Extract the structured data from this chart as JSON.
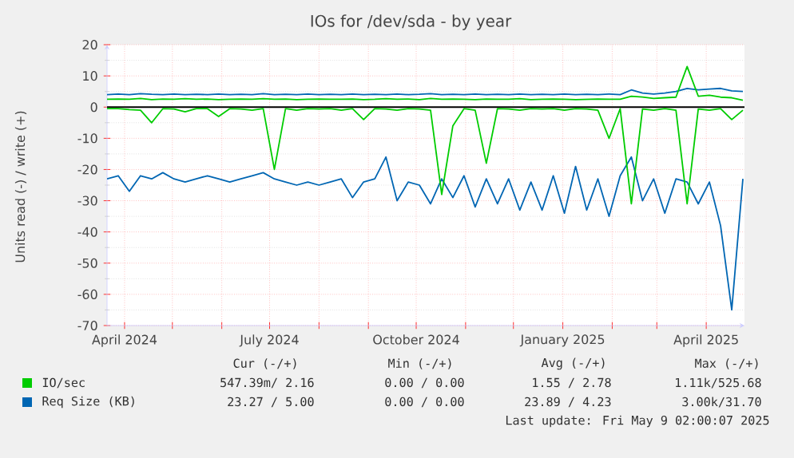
{
  "chart_data": {
    "type": "line",
    "title": "IOs for /dev/sda - by year",
    "ylabel": "Units read (-) / write (+)",
    "x": [
      "2024-03-21",
      "2024-03-28",
      "2024-04-04",
      "2024-04-11",
      "2024-04-18",
      "2024-04-25",
      "2024-05-02",
      "2024-05-09",
      "2024-05-16",
      "2024-05-23",
      "2024-05-30",
      "2024-06-06",
      "2024-06-13",
      "2024-06-20",
      "2024-06-27",
      "2024-07-04",
      "2024-07-11",
      "2024-07-18",
      "2024-07-25",
      "2024-08-01",
      "2024-08-08",
      "2024-08-15",
      "2024-08-22",
      "2024-08-29",
      "2024-09-05",
      "2024-09-12",
      "2024-09-19",
      "2024-09-26",
      "2024-10-03",
      "2024-10-10",
      "2024-10-17",
      "2024-10-24",
      "2024-10-31",
      "2024-11-07",
      "2024-11-14",
      "2024-11-21",
      "2024-11-28",
      "2024-12-05",
      "2024-12-12",
      "2024-12-19",
      "2024-12-26",
      "2025-01-02",
      "2025-01-09",
      "2025-01-16",
      "2025-01-23",
      "2025-01-30",
      "2025-02-06",
      "2025-02-13",
      "2025-02-20",
      "2025-02-27",
      "2025-03-06",
      "2025-03-13",
      "2025-03-20",
      "2025-03-27",
      "2025-04-03",
      "2025-04-10",
      "2025-04-17",
      "2025-04-24"
    ],
    "series": [
      {
        "color": "#00cc00",
        "values": [
          -0.5,
          -0.5,
          -0.8,
          -1,
          -5,
          -0.5,
          -0.6,
          -1.5,
          -0.5,
          -0.5,
          -3,
          -0.5,
          -0.6,
          -1,
          -0.5,
          -20,
          -0.5,
          -1,
          -0.5,
          -0.6,
          -0.5,
          -1,
          -0.5,
          -4,
          -0.5,
          -0.6,
          -1,
          -0.5,
          -0.6,
          -1,
          -28,
          -6,
          -0.5,
          -1,
          -18,
          -0.5,
          -0.6,
          -1,
          -0.5,
          -0.6,
          -0.5,
          -1,
          -0.5,
          -0.6,
          -1,
          -10,
          -0.5,
          -31,
          -0.6,
          -1,
          -0.5,
          -1,
          -31,
          -0.6,
          -1,
          -0.5,
          -4,
          -1
        ]
      },
      {
        "name": "IO/sec",
        "color": "#00cc00",
        "values": [
          2.5,
          2.6,
          2.5,
          2.8,
          2.4,
          2.6,
          2.5,
          2.7,
          2.5,
          2.6,
          2.4,
          2.5,
          2.6,
          2.5,
          2.7,
          2.5,
          2.6,
          2.4,
          2.5,
          2.6,
          2.5,
          2.5,
          2.6,
          2.4,
          2.5,
          2.7,
          2.5,
          2.6,
          2.4,
          2.8,
          2.5,
          2.6,
          2.5,
          2.4,
          2.6,
          2.5,
          2.5,
          2.7,
          2.4,
          2.5,
          2.6,
          2.5,
          2.4,
          2.5,
          2.6,
          2.5,
          2.5,
          3.5,
          3.2,
          2.8,
          3.0,
          3.2,
          13,
          3.5,
          3.8,
          3.2,
          3.0,
          2.2
        ]
      },
      {
        "color": "#0066b3",
        "values": [
          -23,
          -22,
          -27,
          -22,
          -23,
          -21,
          -23,
          -24,
          -23,
          -22,
          -23,
          -24,
          -23,
          -22,
          -21,
          -23,
          -24,
          -25,
          -24,
          -25,
          -24,
          -23,
          -29,
          -24,
          -23,
          -16,
          -30,
          -24,
          -25,
          -31,
          -23,
          -29,
          -22,
          -32,
          -23,
          -31,
          -23,
          -33,
          -24,
          -33,
          -22,
          -34,
          -19,
          -33,
          -23,
          -35,
          -22,
          -16,
          -30,
          -23,
          -34,
          -23,
          -24,
          -31,
          -24,
          -38,
          -65,
          -23
        ]
      },
      {
        "name": "Req Size (KB)",
        "color": "#0066b3",
        "values": [
          4.0,
          4.2,
          4.0,
          4.3,
          4.1,
          4.0,
          4.2,
          4.0,
          4.1,
          4.0,
          4.2,
          4.0,
          4.1,
          4.0,
          4.3,
          4.0,
          4.1,
          4.0,
          4.2,
          4.0,
          4.1,
          4.0,
          4.2,
          4.0,
          4.1,
          4.0,
          4.2,
          4.0,
          4.1,
          4.3,
          4.0,
          4.1,
          4.0,
          4.2,
          4.0,
          4.1,
          4.0,
          4.2,
          4.0,
          4.1,
          4.0,
          4.2,
          4.0,
          4.1,
          4.0,
          4.2,
          4.0,
          5.5,
          4.5,
          4.2,
          4.5,
          5.0,
          6.0,
          5.5,
          5.8,
          6.0,
          5.2,
          5.0
        ]
      }
    ],
    "xlim": [
      "2024-03-21",
      "2025-04-25"
    ],
    "xticks": [
      {
        "value": "2024-04-01",
        "label": "April 2024"
      },
      {
        "value": "2024-05-01",
        "label": null
      },
      {
        "value": "2024-06-01",
        "label": null
      },
      {
        "value": "2024-07-01",
        "label": "July 2024"
      },
      {
        "value": "2024-08-01",
        "label": null
      },
      {
        "value": "2024-09-01",
        "label": null
      },
      {
        "value": "2024-10-01",
        "label": "October 2024"
      },
      {
        "value": "2024-11-01",
        "label": null
      },
      {
        "value": "2024-12-01",
        "label": null
      },
      {
        "value": "2025-01-01",
        "label": "January 2025"
      },
      {
        "value": "2025-02-01",
        "label": null
      },
      {
        "value": "2025-03-01",
        "label": null
      },
      {
        "value": "2025-04-01",
        "label": "April 2025"
      }
    ],
    "ylim": [
      -70,
      20
    ],
    "yticks": [
      -70,
      -60,
      -50,
      -40,
      -30,
      -20,
      -10,
      0,
      10,
      20
    ],
    "ref_lines": [
      {
        "axis": "y",
        "value": 0,
        "color": "#000000"
      }
    ],
    "grid": true,
    "legend": "bottom",
    "marker": "none",
    "line_style": "solid",
    "annotations": [
      "Cur (-/+)",
      "Min (-/+)",
      "Avg (-/+)",
      "Max (-/+)",
      "547.39m/ 2.16",
      "0.00 / 0.00",
      "1.55 / 2.78",
      "1.11k/525.68",
      "23.27 / 5.00",
      "0.00 / 0.00",
      "23.89 / 4.23",
      "3.00k/31.70",
      "Last update: Fri May  9 02:00:07 2025"
    ]
  }
}
